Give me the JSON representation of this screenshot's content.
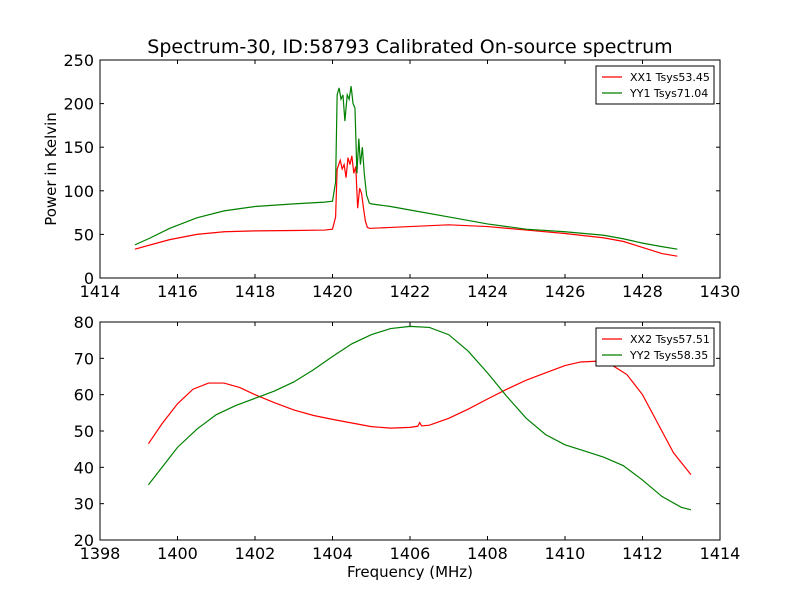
{
  "figure": {
    "title": "Spectrum-30, ID:58793 Calibrated On-source spectrum"
  },
  "chart_data": [
    {
      "type": "line",
      "title": "Spectrum-30, ID:58793 Calibrated On-source spectrum",
      "xlabel": "",
      "ylabel": "Power in Kelvin",
      "xlim": [
        1414,
        1430
      ],
      "ylim": [
        0,
        250
      ],
      "xticks": [
        "1414",
        "1416",
        "1418",
        "1420",
        "1422",
        "1424",
        "1426",
        "1428",
        "1430"
      ],
      "yticks": [
        "0",
        "50",
        "100",
        "150",
        "200",
        "250"
      ],
      "legend_position": "top-right",
      "grid": false,
      "series": [
        {
          "name": "XX1 Tsys53.45",
          "color": "#ff0000",
          "x": [
            1414.9,
            1415.3,
            1415.8,
            1416.5,
            1417.2,
            1418,
            1419,
            1419.8,
            1420.0,
            1420.08,
            1420.12,
            1420.2,
            1420.25,
            1420.3,
            1420.35,
            1420.4,
            1420.45,
            1420.5,
            1420.55,
            1420.6,
            1420.65,
            1420.7,
            1420.75,
            1420.8,
            1420.85,
            1420.9,
            1420.95,
            1421.0,
            1421.5,
            1422,
            1423,
            1424,
            1425,
            1426,
            1427,
            1427.5,
            1428,
            1428.5,
            1428.9
          ],
          "y": [
            33,
            38,
            44,
            50,
            53,
            54,
            54.5,
            55,
            56,
            70,
            125,
            135,
            125,
            130,
            115,
            138,
            130,
            140,
            120,
            128,
            80,
            103,
            97,
            80,
            65,
            58,
            57,
            57,
            58,
            59,
            61,
            59,
            55,
            51,
            46,
            42,
            35,
            28,
            25
          ]
        },
        {
          "name": "YY1 Tsys71.04",
          "color": "#008000",
          "x": [
            1414.9,
            1415.3,
            1415.8,
            1416.5,
            1417.2,
            1418,
            1419,
            1419.8,
            1420.0,
            1420.08,
            1420.12,
            1420.17,
            1420.22,
            1420.27,
            1420.32,
            1420.38,
            1420.43,
            1420.48,
            1420.53,
            1420.58,
            1420.63,
            1420.68,
            1420.72,
            1420.77,
            1420.82,
            1420.88,
            1420.95,
            1421.0,
            1421.5,
            1422,
            1423,
            1424,
            1425,
            1426,
            1427,
            1427.5,
            1428,
            1428.5,
            1428.9
          ],
          "y": [
            38,
            46,
            57,
            69,
            77,
            82,
            85,
            87,
            88,
            110,
            210,
            218,
            205,
            210,
            180,
            210,
            205,
            220,
            200,
            195,
            120,
            160,
            130,
            150,
            120,
            95,
            86,
            85,
            82,
            78,
            70,
            62,
            56,
            53,
            49,
            45,
            40,
            36,
            33
          ]
        }
      ]
    },
    {
      "type": "line",
      "title": "",
      "xlabel": "Frequency (MHz)",
      "ylabel": "",
      "xlim": [
        1398,
        1414
      ],
      "ylim": [
        20,
        80
      ],
      "xticks": [
        "1398",
        "1400",
        "1402",
        "1404",
        "1406",
        "1408",
        "1410",
        "1412",
        "1414"
      ],
      "yticks": [
        "20",
        "30",
        "40",
        "50",
        "60",
        "70",
        "80"
      ],
      "legend_position": "top-right",
      "grid": false,
      "series": [
        {
          "name": "XX2 Tsys57.51",
          "color": "#ff0000",
          "x": [
            1399.25,
            1399.6,
            1400.0,
            1400.4,
            1400.8,
            1401.2,
            1401.6,
            1402.0,
            1402.5,
            1403.0,
            1403.5,
            1404.0,
            1404.5,
            1405.0,
            1405.5,
            1406.0,
            1406.2,
            1406.25,
            1406.3,
            1406.5,
            1407.0,
            1407.5,
            1408.0,
            1408.5,
            1409.0,
            1409.5,
            1410.0,
            1410.4,
            1410.8,
            1411.2,
            1411.6,
            1412.0,
            1412.4,
            1412.8,
            1413.25
          ],
          "y": [
            46.5,
            52,
            57.5,
            61.5,
            63.2,
            63.2,
            62,
            60,
            57.8,
            55.8,
            54.3,
            53.2,
            52.2,
            51.2,
            50.8,
            51,
            51.3,
            52.3,
            51.4,
            51.6,
            53.5,
            56,
            58.8,
            61.5,
            64,
            66,
            68,
            69,
            69.2,
            68.2,
            65.5,
            60,
            52,
            44,
            38
          ]
        },
        {
          "name": "YY2 Tsys58.35",
          "color": "#008000",
          "x": [
            1399.25,
            1399.6,
            1400.0,
            1400.5,
            1401.0,
            1401.5,
            1402.0,
            1402.5,
            1403.0,
            1403.5,
            1404.0,
            1404.5,
            1405.0,
            1405.5,
            1406.0,
            1406.5,
            1407.0,
            1407.5,
            1408.0,
            1408.5,
            1409.0,
            1409.5,
            1410.0,
            1410.5,
            1411.0,
            1411.5,
            1412.0,
            1412.5,
            1413.0,
            1413.25
          ],
          "y": [
            35.2,
            40,
            45.5,
            50.5,
            54.5,
            57,
            59,
            61,
            63.5,
            66.8,
            70.5,
            74,
            76.5,
            78.2,
            78.8,
            78.5,
            76.5,
            72,
            66,
            59.5,
            53.5,
            49,
            46.2,
            44.5,
            42.8,
            40.5,
            36.5,
            32,
            29,
            28.3
          ]
        }
      ]
    }
  ]
}
